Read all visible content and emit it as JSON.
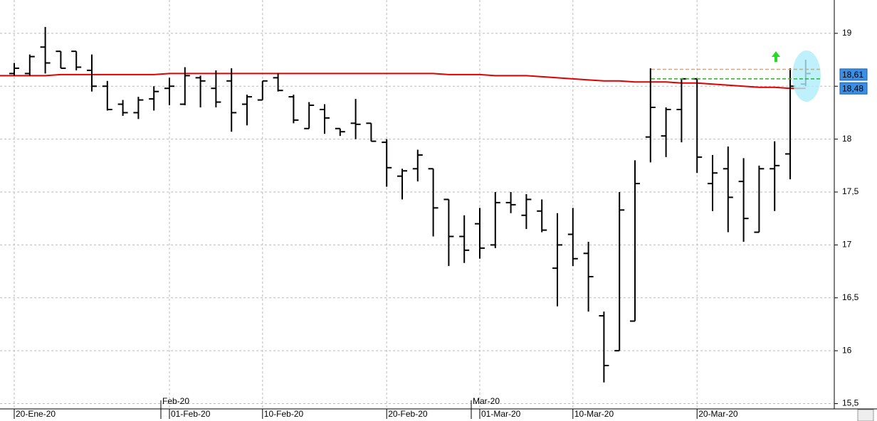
{
  "chart_data": {
    "type": "ohlc",
    "categories": [
      "20-Ene-20",
      null,
      null,
      null,
      null,
      null,
      null,
      null,
      null,
      null,
      "01-Feb-20",
      null,
      null,
      null,
      null,
      null,
      "10-Feb-20",
      null,
      null,
      null,
      null,
      null,
      null,
      null,
      "20-Feb-20",
      null,
      null,
      null,
      null,
      null,
      "01-Mar-20",
      null,
      null,
      null,
      null,
      null,
      "10-Mar-20",
      null,
      null,
      null,
      null,
      null,
      null,
      null,
      "20-Mar-20",
      null,
      null,
      null,
      null,
      null,
      null,
      null
    ],
    "months": [
      null,
      null,
      null,
      null,
      null,
      null,
      null,
      null,
      null,
      null,
      "Feb-20",
      null,
      null,
      null,
      null,
      null,
      null,
      null,
      null,
      null,
      null,
      null,
      null,
      null,
      null,
      null,
      null,
      null,
      null,
      null,
      "Mar-20",
      null,
      null,
      null,
      null,
      null,
      null,
      null,
      null,
      null,
      null,
      null,
      null,
      null,
      null,
      null,
      null,
      null,
      null,
      null,
      null,
      null
    ],
    "open": [
      18.62,
      18.62,
      18.87,
      18.83,
      18.83,
      18.65,
      18.5,
      18.33,
      18.25,
      18.38,
      18.48,
      18.33,
      18.58,
      18.48,
      18.55,
      18.33,
      18.37,
      18.58,
      18.4,
      18.1,
      18.28,
      18.1,
      18.15,
      18.15,
      17.97,
      17.65,
      17.72,
      17.72,
      17.43,
      17.08,
      17.2,
      17.0,
      17.4,
      17.28,
      17.32,
      16.78,
      17.1,
      16.92,
      16.33,
      16.0,
      16.28,
      18.02,
      18.03,
      18.28,
      18.57,
      17.58,
      17.72,
      17.6,
      17.12,
      17.72,
      17.86,
      18.52
    ],
    "high": [
      18.72,
      18.8,
      19.06,
      18.83,
      18.83,
      18.8,
      18.55,
      18.37,
      18.4,
      18.5,
      18.58,
      18.68,
      18.6,
      18.65,
      18.67,
      18.42,
      18.55,
      18.62,
      18.42,
      18.35,
      18.33,
      18.1,
      18.38,
      18.15,
      18.0,
      17.72,
      17.9,
      17.72,
      17.43,
      17.28,
      17.35,
      17.5,
      17.5,
      17.48,
      17.43,
      17.3,
      17.35,
      17.03,
      16.37,
      17.5,
      17.8,
      18.67,
      18.3,
      18.57,
      18.57,
      17.85,
      17.93,
      17.82,
      17.75,
      17.98,
      18.67,
      18.75
    ],
    "low": [
      18.6,
      18.6,
      18.62,
      18.67,
      18.65,
      18.45,
      18.27,
      18.22,
      18.19,
      18.27,
      18.32,
      18.32,
      18.3,
      18.3,
      18.07,
      18.13,
      18.37,
      18.45,
      18.15,
      18.1,
      18.05,
      18.03,
      18.0,
      17.98,
      17.55,
      17.43,
      17.6,
      17.08,
      16.8,
      16.83,
      16.87,
      16.97,
      17.3,
      17.15,
      17.12,
      16.42,
      16.8,
      16.37,
      15.7,
      16.0,
      16.28,
      17.78,
      17.83,
      17.97,
      17.68,
      17.32,
      17.12,
      17.03,
      17.12,
      17.32,
      17.62,
      18.5
    ],
    "close": [
      18.67,
      18.78,
      18.72,
      18.67,
      18.68,
      18.5,
      18.28,
      18.25,
      18.37,
      18.45,
      18.5,
      18.6,
      18.55,
      18.35,
      18.25,
      18.4,
      18.55,
      18.46,
      18.18,
      18.32,
      18.2,
      18.07,
      18.14,
      17.98,
      17.73,
      17.7,
      17.85,
      17.35,
      17.08,
      16.95,
      16.97,
      17.4,
      17.38,
      17.43,
      17.14,
      17.0,
      16.87,
      16.7,
      15.86,
      17.33,
      17.58,
      18.3,
      18.28,
      18.57,
      17.83,
      17.68,
      17.45,
      17.25,
      17.72,
      17.75,
      18.5,
      18.62
    ],
    "color": "#000000",
    "ma": {
      "color": "#e00000",
      "values": [
        18.6,
        18.6,
        18.6,
        18.61,
        18.61,
        18.61,
        18.61,
        18.61,
        18.61,
        18.61,
        18.62,
        18.62,
        18.62,
        18.62,
        18.62,
        18.62,
        18.62,
        18.62,
        18.62,
        18.62,
        18.62,
        18.62,
        18.62,
        18.62,
        18.62,
        18.62,
        18.62,
        18.62,
        18.61,
        18.61,
        18.61,
        18.6,
        18.6,
        18.6,
        18.59,
        18.58,
        18.57,
        18.56,
        18.55,
        18.55,
        18.54,
        18.54,
        18.54,
        18.53,
        18.53,
        18.52,
        18.51,
        18.5,
        18.49,
        18.49,
        18.48,
        18.48
      ]
    },
    "hlines": [
      {
        "value": 18.66,
        "color": "#f5a040"
      },
      {
        "value": 18.57,
        "color": "#22bb22"
      }
    ],
    "price_labels": [
      {
        "value": 18.61,
        "label": "18,61"
      },
      {
        "value": 18.48,
        "label": "18,48"
      }
    ],
    "ylim": [
      15.45,
      19.315
    ],
    "yticks": [
      {
        "value": 15.5,
        "label": "15,5"
      },
      16,
      {
        "value": 16.5,
        "label": "16,5"
      },
      17,
      {
        "value": 17.5,
        "label": "17,5"
      },
      18,
      {
        "value": 18.5,
        "label": ""
      },
      19
    ],
    "grid": true
  }
}
